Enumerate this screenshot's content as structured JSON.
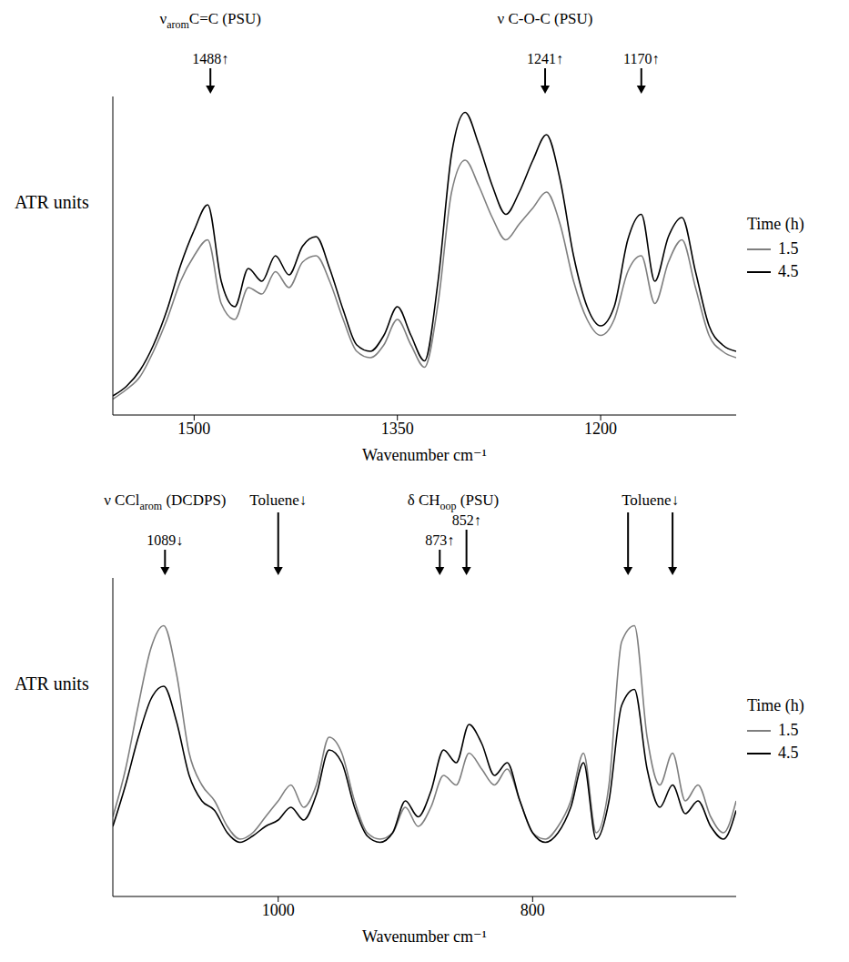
{
  "chart_data": [
    {
      "type": "line",
      "xlabel": "Wavenumber cm⁻¹",
      "ylabel": "ATR units",
      "legend": "right",
      "legend_title": "Time (h)",
      "tick_labels": "x",
      "xlim": [
        1560,
        1100
      ],
      "xticks": [
        1500,
        1350,
        1200
      ],
      "ylim": [
        0,
        1
      ],
      "x": [
        1560,
        1550,
        1540,
        1530,
        1520,
        1510,
        1500,
        1490,
        1480,
        1470,
        1460,
        1450,
        1440,
        1430,
        1420,
        1410,
        1400,
        1390,
        1380,
        1370,
        1360,
        1350,
        1340,
        1330,
        1320,
        1310,
        1300,
        1290,
        1280,
        1270,
        1260,
        1250,
        1240,
        1230,
        1220,
        1210,
        1200,
        1190,
        1180,
        1170,
        1160,
        1150,
        1140,
        1130,
        1120,
        1110,
        1100
      ],
      "series": [
        {
          "name": "1.5",
          "color": "#7f7f7f",
          "values": [
            0.05,
            0.08,
            0.12,
            0.2,
            0.3,
            0.42,
            0.5,
            0.55,
            0.35,
            0.3,
            0.4,
            0.38,
            0.45,
            0.4,
            0.48,
            0.5,
            0.42,
            0.3,
            0.2,
            0.18,
            0.22,
            0.3,
            0.22,
            0.15,
            0.35,
            0.7,
            0.8,
            0.72,
            0.62,
            0.55,
            0.6,
            0.65,
            0.7,
            0.6,
            0.42,
            0.3,
            0.25,
            0.3,
            0.45,
            0.5,
            0.35,
            0.48,
            0.55,
            0.4,
            0.25,
            0.2,
            0.18
          ]
        },
        {
          "name": "4.5",
          "color": "#000000",
          "values": [
            0.06,
            0.09,
            0.14,
            0.22,
            0.33,
            0.47,
            0.58,
            0.66,
            0.42,
            0.34,
            0.46,
            0.42,
            0.5,
            0.44,
            0.53,
            0.56,
            0.46,
            0.33,
            0.22,
            0.2,
            0.25,
            0.34,
            0.25,
            0.17,
            0.42,
            0.82,
            0.95,
            0.85,
            0.72,
            0.63,
            0.7,
            0.8,
            0.88,
            0.74,
            0.5,
            0.34,
            0.28,
            0.34,
            0.55,
            0.63,
            0.42,
            0.56,
            0.62,
            0.45,
            0.28,
            0.22,
            0.2
          ]
        }
      ],
      "annotations": [
        {
          "label": [
            "ν",
            "arom",
            "C=C (PSU)"
          ],
          "peaks": [
            {
              "x": 1488,
              "text": "1488↑"
            }
          ]
        },
        {
          "label": "ν C-O-C (PSU)",
          "peaks": [
            {
              "x": 1241,
              "text": "1241↑"
            }
          ]
        },
        {
          "peaks": [
            {
              "x": 1170,
              "text": "1170↑"
            }
          ]
        }
      ]
    },
    {
      "type": "line",
      "xlabel": "Wavenumber cm⁻¹",
      "ylabel": "ATR units",
      "legend": "right",
      "legend_title": "Time (h)",
      "tick_labels": "x",
      "xlim": [
        1130,
        640
      ],
      "xticks": [
        1000,
        800
      ],
      "ylim": [
        0,
        1
      ],
      "x": [
        1130,
        1120,
        1110,
        1100,
        1090,
        1080,
        1070,
        1060,
        1050,
        1040,
        1030,
        1020,
        1010,
        1000,
        990,
        980,
        970,
        960,
        950,
        940,
        930,
        920,
        910,
        900,
        890,
        880,
        870,
        860,
        850,
        840,
        830,
        820,
        810,
        800,
        790,
        780,
        770,
        760,
        750,
        740,
        730,
        720,
        710,
        700,
        690,
        680,
        670,
        660,
        650,
        640
      ],
      "series": [
        {
          "name": "1.5",
          "color": "#7f7f7f",
          "values": [
            0.25,
            0.4,
            0.6,
            0.78,
            0.85,
            0.7,
            0.45,
            0.35,
            0.3,
            0.22,
            0.18,
            0.2,
            0.25,
            0.3,
            0.35,
            0.28,
            0.35,
            0.5,
            0.45,
            0.3,
            0.2,
            0.18,
            0.2,
            0.28,
            0.22,
            0.28,
            0.38,
            0.35,
            0.45,
            0.4,
            0.35,
            0.4,
            0.3,
            0.2,
            0.18,
            0.22,
            0.3,
            0.45,
            0.2,
            0.35,
            0.8,
            0.85,
            0.5,
            0.35,
            0.45,
            0.3,
            0.35,
            0.25,
            0.2,
            0.3
          ]
        },
        {
          "name": "4.5",
          "color": "#000000",
          "values": [
            0.22,
            0.35,
            0.5,
            0.62,
            0.66,
            0.55,
            0.38,
            0.3,
            0.27,
            0.2,
            0.17,
            0.19,
            0.22,
            0.24,
            0.28,
            0.24,
            0.32,
            0.46,
            0.42,
            0.28,
            0.19,
            0.17,
            0.2,
            0.3,
            0.25,
            0.33,
            0.46,
            0.42,
            0.54,
            0.48,
            0.38,
            0.42,
            0.3,
            0.2,
            0.17,
            0.2,
            0.28,
            0.42,
            0.18,
            0.3,
            0.6,
            0.65,
            0.4,
            0.28,
            0.35,
            0.26,
            0.3,
            0.22,
            0.18,
            0.27
          ]
        }
      ],
      "annotations": [
        {
          "label": [
            "ν CCl",
            "arom",
            " (DCDPS)"
          ],
          "peaks": [
            {
              "x": 1089,
              "text": "1089↓"
            }
          ]
        },
        {
          "label": "Toluene↓",
          "peaks": [
            {
              "x": 1000
            }
          ]
        },
        {
          "label": [
            "δ CH",
            "oop",
            " (PSU)"
          ],
          "peaks": [
            {
              "x": 873,
              "text": "873↑"
            },
            {
              "x": 852,
              "text": "852↑"
            }
          ]
        },
        {
          "label": "Toluene↓",
          "peaks": [
            {
              "x": 725
            },
            {
              "x": 690
            }
          ]
        }
      ]
    }
  ]
}
